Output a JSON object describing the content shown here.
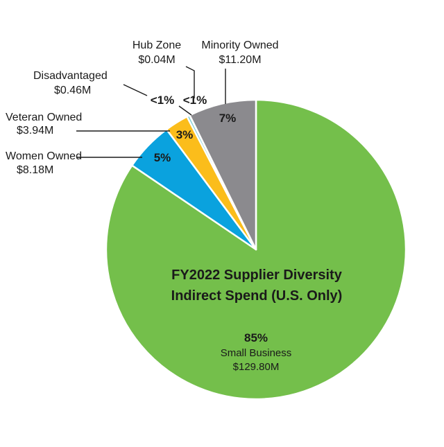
{
  "chart_data": {
    "type": "pie",
    "title_lines": [
      "FY2022 Supplier Diversity",
      "Indirect Spend (U.S. Only)"
    ],
    "units": "$M",
    "slices": [
      {
        "key": "small-business",
        "label": "Small Business",
        "amount": "$129.80M",
        "value": 129.8,
        "percent_label": "85%",
        "color": "#74bf4b"
      },
      {
        "key": "women-owned",
        "label": "Women Owned",
        "amount": "$8.18M",
        "value": 8.18,
        "percent_label": "5%",
        "color": "#0aa2de"
      },
      {
        "key": "veteran-owned",
        "label": "Veteran Owned",
        "amount": "$3.94M",
        "value": 3.94,
        "percent_label": "3%",
        "color": "#fbbd1b"
      },
      {
        "key": "disadvantaged",
        "label": "Disadvantaged",
        "amount": "$0.46M",
        "value": 0.46,
        "percent_label": "<1%",
        "color": "#7ccdd3"
      },
      {
        "key": "hub-zone",
        "label": "Hub Zone",
        "amount": "$0.04M",
        "value": 0.04,
        "percent_label": "<1%",
        "color": "#1f6f73"
      },
      {
        "key": "minority-owned",
        "label": "Minority Owned",
        "amount": "$11.20M",
        "value": 11.2,
        "percent_label": "7%",
        "color": "#8b8a8e"
      }
    ]
  }
}
